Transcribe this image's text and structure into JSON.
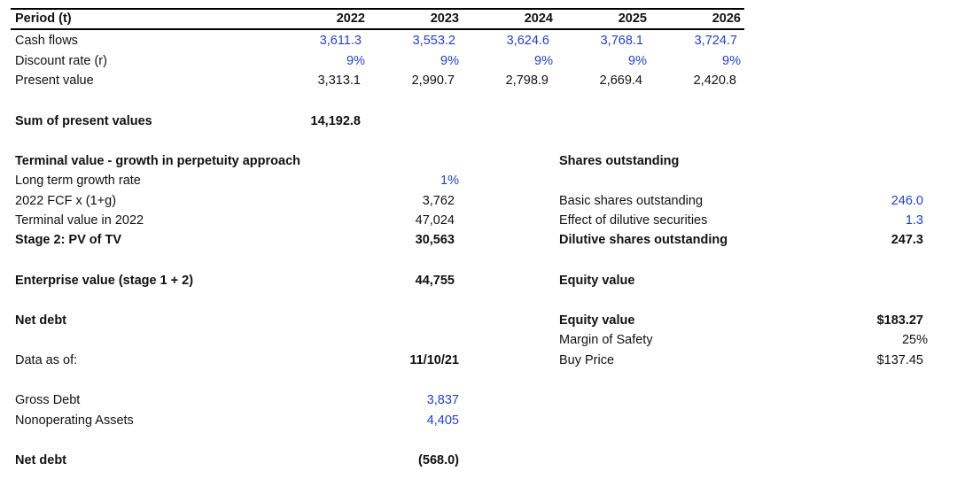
{
  "header": {
    "period_label": "Period (t)",
    "years": [
      "2022",
      "2023",
      "2024",
      "2025",
      "2026"
    ]
  },
  "rows": {
    "cash_flows": {
      "label": "Cash flows",
      "values": [
        "3,611.3",
        "3,553.2",
        "3,624.6",
        "3,768.1",
        "3,724.7"
      ]
    },
    "discount_rate": {
      "label": "Discount rate (r)",
      "values": [
        "9%",
        "9%",
        "9%",
        "9%",
        "9%"
      ]
    },
    "present_value": {
      "label": "Present value",
      "values": [
        "3,313.1",
        "2,990.7",
        "2,798.9",
        "2,669.4",
        "2,420.8"
      ]
    }
  },
  "sum_pv": {
    "label": "Sum of present values",
    "value": "14,192.8"
  },
  "terminal": {
    "heading": "Terminal value - growth in perpetuity approach",
    "growth_label": "Long term growth rate",
    "growth_value": "1%",
    "fcf_label": "2022 FCF x (1+g)",
    "fcf_value": "3,762",
    "tv_label": "Terminal value in 2022",
    "tv_value": "47,024",
    "pv_tv_label": "Stage 2: PV of TV",
    "pv_tv_value": "30,563"
  },
  "enterprise_value": {
    "label": "Enterprise value (stage 1 + 2)",
    "value": "44,755"
  },
  "net_debt_heading": "Net debt",
  "data_as_of": {
    "label": "Data as of:",
    "value": "11/10/21"
  },
  "gross_debt": {
    "label": "Gross Debt",
    "value": "3,837"
  },
  "nonoperating_assets": {
    "label": "Nonoperating Assets",
    "value": "4,405"
  },
  "net_debt_total": {
    "label": "Net debt",
    "value": "(568.0)"
  },
  "shares": {
    "heading": "Shares outstanding",
    "basic_label": "Basic shares outstanding",
    "basic_value": "246.0",
    "dilutive_label": "Effect of dilutive securities",
    "dilutive_value": "1.3",
    "diluted_label": "Dilutive shares outstanding",
    "diluted_value": "247.3"
  },
  "equity": {
    "heading": "Equity value",
    "value_label": "Equity value",
    "value": "$183.27",
    "mos_label": "Margin of Safety",
    "mos_value": "25%",
    "buy_label": "Buy Price",
    "buy_value": "$137.45"
  },
  "colors": {
    "input_blue": "#1f3fd8",
    "text": "#111111"
  }
}
